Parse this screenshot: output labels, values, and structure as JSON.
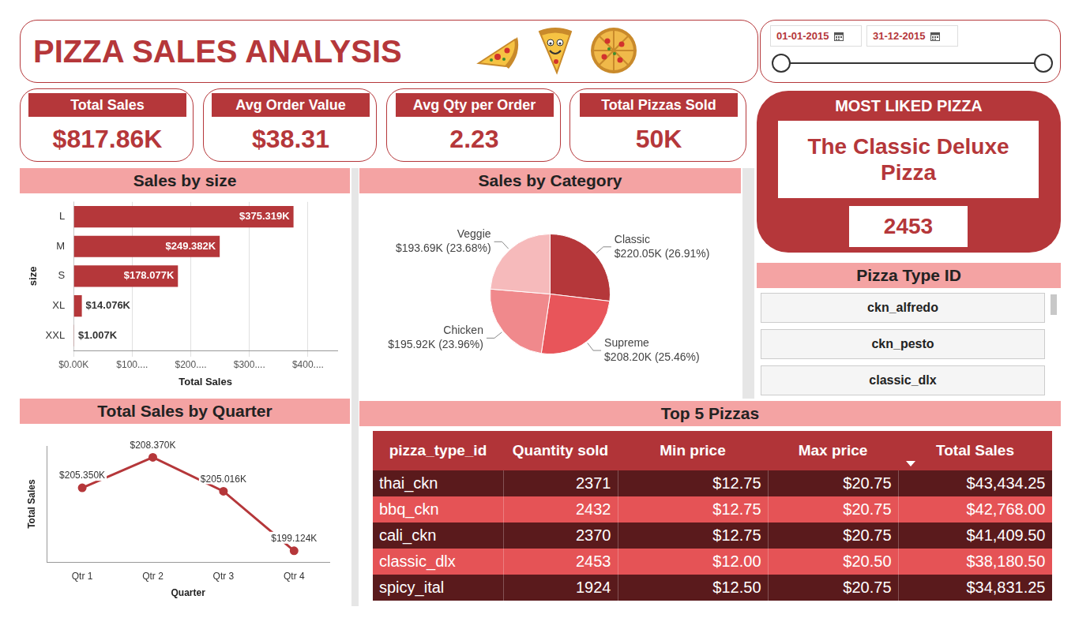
{
  "header": {
    "title": "PIZZA SALES ANALYSIS"
  },
  "date_range": {
    "start": "01-01-2015",
    "end": "31-12-2015"
  },
  "kpis": [
    {
      "label": "Total Sales",
      "value": "$817.86K"
    },
    {
      "label": "Avg Order Value",
      "value": "$38.31"
    },
    {
      "label": "Avg Qty per Order",
      "value": "2.23"
    },
    {
      "label": "Total Pizzas Sold",
      "value": "50K"
    }
  ],
  "most_liked": {
    "title": "MOST LIKED PIZZA",
    "name": "The Classic Deluxe Pizza",
    "quantity": 2453
  },
  "pizza_type_slicer": {
    "title": "Pizza Type ID",
    "items": [
      "ckn_alfredo",
      "ckn_pesto",
      "classic_dlx"
    ]
  },
  "chart_data": [
    {
      "type": "bar",
      "title": "Sales by size",
      "orientation": "horizontal",
      "categories": [
        "L",
        "M",
        "S",
        "XL",
        "XXL"
      ],
      "values": [
        375319,
        249382,
        178077,
        14076,
        1007
      ],
      "value_labels": [
        "$375.319K",
        "$249.382K",
        "$178.077K",
        "$14.076K",
        "$1.007K"
      ],
      "data_labels": true,
      "color": "#b5373a",
      "x_label": "Total Sales",
      "y_label": "size",
      "xlim": [
        0,
        450000
      ],
      "xticks": [
        {
          "value": 0,
          "label": "$0.00K"
        },
        {
          "value": 100000,
          "label": "$100...."
        },
        {
          "value": 200000,
          "label": "$200...."
        },
        {
          "value": 300000,
          "label": "$300...."
        },
        {
          "value": 400000,
          "label": "$400...."
        }
      ],
      "grid": true
    },
    {
      "type": "pie",
      "title": "Sales by Category",
      "categories": [
        "Classic",
        "Supreme",
        "Chicken",
        "Veggie"
      ],
      "values": [
        220050,
        208200,
        195920,
        193690
      ],
      "value_labels": [
        "$220.05K (26.91%)",
        "$208.20K (25.46%)",
        "$195.92K (23.96%)",
        "$193.69K (23.68%)"
      ],
      "data_labels": true,
      "colors": [
        "#b5373a",
        "#e8555a",
        "#f0898c",
        "#f6babb"
      ]
    },
    {
      "type": "line",
      "title": "Total Sales by Quarter",
      "categories": [
        "Qtr 1",
        "Qtr 2",
        "Qtr 3",
        "Qtr 4"
      ],
      "values": [
        205350,
        208370,
        205016,
        199124
      ],
      "value_labels": [
        "$205.350K",
        "$208.370K",
        "$205.016K",
        "$199.124K"
      ],
      "data_labels": true,
      "color": "#b5373a",
      "marker": "circle",
      "x_label": "Quarter",
      "y_label": "Total Sales",
      "ylim": [
        198000,
        209500
      ],
      "tick_labels": "x",
      "grid": false
    }
  ],
  "table": {
    "title": "Top 5 Pizzas",
    "columns": [
      "pizza_type_id",
      "Quantity sold",
      "Min price",
      "Max price",
      "Total Sales"
    ],
    "rows": [
      [
        "thai_ckn",
        "2371",
        "$12.75",
        "$20.75",
        "$43,434.25"
      ],
      [
        "bbq_ckn",
        "2432",
        "$12.75",
        "$20.75",
        "$42,768.00"
      ],
      [
        "cali_ckn",
        "2370",
        "$12.75",
        "$20.75",
        "$41,409.50"
      ],
      [
        "classic_dlx",
        "2453",
        "$12.00",
        "$20.50",
        "$38,180.50"
      ],
      [
        "spicy_ital",
        "1924",
        "$12.50",
        "$20.75",
        "$34,831.25"
      ]
    ]
  }
}
